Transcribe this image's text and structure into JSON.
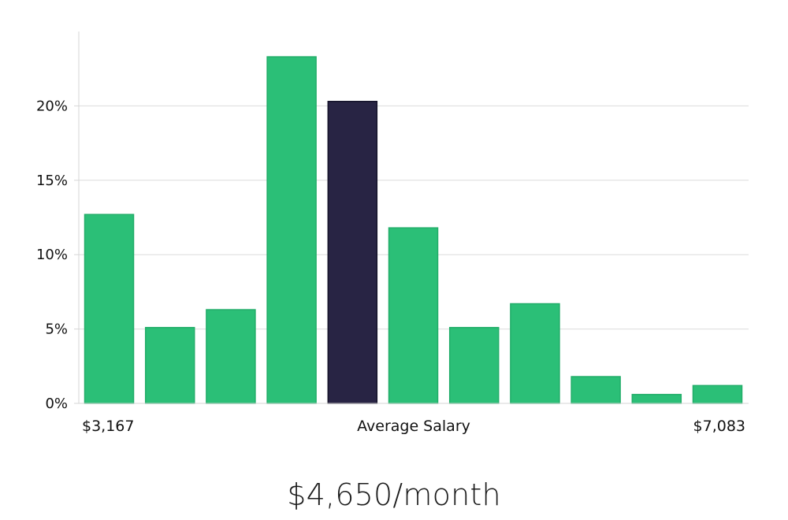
{
  "chart_data": {
    "type": "bar",
    "ylim": [
      0,
      25
    ],
    "y_ticks": [
      0,
      5,
      10,
      15,
      20
    ],
    "y_tick_labels": [
      "0%",
      "5%",
      "10%",
      "15%",
      "20%"
    ],
    "values": [
      12.7,
      5.1,
      6.3,
      23.3,
      20.3,
      11.8,
      5.1,
      6.7,
      1.8,
      0.6,
      1.2
    ],
    "highlight_index": 4,
    "x_labels": {
      "left": "$3,167",
      "center": "Average Salary",
      "right": "$7,083"
    },
    "grid": true,
    "colors": {
      "bar": "#2bbf77",
      "bar_border": "#22ad69",
      "highlight": "#282444",
      "highlight_border": "#15132a",
      "grid": "#dcdcdc",
      "axis": "#d6d6d6"
    }
  },
  "summary": {
    "salary": "$4,650/month"
  }
}
